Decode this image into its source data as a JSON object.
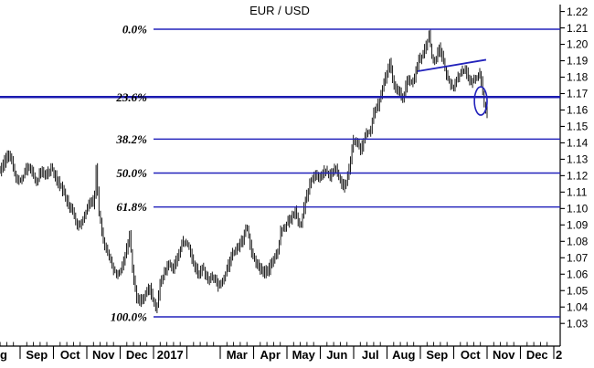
{
  "title": "EUR / USD",
  "colors": {
    "background": "#ffffff",
    "fib_line": "#2222bb",
    "fib_line_emphasis": "#1b1bb0",
    "bars": "#000000",
    "axis": "#000000",
    "annotation": "#2222bb",
    "text": "#000000"
  },
  "y_axis": {
    "side": "right",
    "max": 1.22,
    "min": 1.03,
    "step": 0.01,
    "labels": [
      "1.22",
      "1.21",
      "1.20",
      "1.19",
      "1.18",
      "1.17",
      "1.16",
      "1.15",
      "1.14",
      "1.13",
      "1.12",
      "1.11",
      "1.10",
      "1.09",
      "1.08",
      "1.07",
      "1.06",
      "1.05",
      "1.04",
      "1.03"
    ]
  },
  "x_axis": {
    "unit": "months since 2016-09-01",
    "months": [
      {
        "label": "g",
        "m": -1
      },
      {
        "label": "Sep",
        "m": 0
      },
      {
        "label": "Oct",
        "m": 1
      },
      {
        "label": "Nov",
        "m": 2
      },
      {
        "label": "Dec",
        "m": 3
      },
      {
        "label": "2017",
        "m": 4
      },
      {
        "label": "",
        "m": 5
      },
      {
        "label": "Mar",
        "m": 6
      },
      {
        "label": "Apr",
        "m": 7
      },
      {
        "label": "May",
        "m": 8
      },
      {
        "label": "Jun",
        "m": 9
      },
      {
        "label": "Jul",
        "m": 10
      },
      {
        "label": "Aug",
        "m": 11
      },
      {
        "label": "Sep",
        "m": 12
      },
      {
        "label": "Oct",
        "m": 13
      },
      {
        "label": "Nov",
        "m": 14
      },
      {
        "label": "Dec",
        "m": 15
      },
      {
        "label": "2",
        "m": 16
      }
    ]
  },
  "fibonacci": {
    "high": 1.2092,
    "low": 1.034,
    "levels": [
      {
        "label": "0.0%",
        "price": 1.2092,
        "full_width": false,
        "emphasis": false
      },
      {
        "label": "23.6%",
        "price": 1.1679,
        "full_width": true,
        "emphasis": true
      },
      {
        "label": "38.2%",
        "price": 1.1423,
        "full_width": false,
        "emphasis": false
      },
      {
        "label": "50.0%",
        "price": 1.1216,
        "full_width": false,
        "emphasis": false
      },
      {
        "label": "61.8%",
        "price": 1.1009,
        "full_width": false,
        "emphasis": false
      },
      {
        "label": "100.0%",
        "price": 1.034,
        "full_width": false,
        "emphasis": false
      }
    ]
  },
  "chart_data": {
    "type": "bar",
    "subtype": "ohlc-price-bars",
    "symbol": "EUR/USD",
    "title": "EUR / USD",
    "xlabel": "",
    "ylabel": "",
    "x_range_months": [
      -0.6,
      17.0
    ],
    "data_end_month": 14.0,
    "ylim": [
      1.03,
      1.22
    ],
    "x_unit": "months since 2016-09-01 (0 = Sep 2016, 14 = end Oct 2017)",
    "series": [
      {
        "name": "EUR/USD close path",
        "points": [
          [
            -0.6,
            1.1225
          ],
          [
            -0.45,
            1.1295
          ],
          [
            -0.32,
            1.1345
          ],
          [
            -0.18,
            1.1215
          ],
          [
            -0.05,
            1.1165
          ],
          [
            0.1,
            1.1195
          ],
          [
            0.24,
            1.1265
          ],
          [
            0.36,
            1.1225
          ],
          [
            0.5,
            1.1155
          ],
          [
            0.62,
            1.1235
          ],
          [
            0.78,
            1.1205
          ],
          [
            0.95,
            1.1245
          ],
          [
            1.1,
            1.1175
          ],
          [
            1.25,
            1.1125
          ],
          [
            1.42,
            1.1035
          ],
          [
            1.58,
            1.0975
          ],
          [
            1.72,
            1.0885
          ],
          [
            1.85,
            1.0925
          ],
          [
            2.0,
            1.0985
          ],
          [
            2.12,
            1.1055
          ],
          [
            2.22,
            1.1025
          ],
          [
            2.28,
            1.1255
          ],
          [
            2.36,
            1.0975
          ],
          [
            2.5,
            1.0805
          ],
          [
            2.65,
            1.0715
          ],
          [
            2.8,
            1.0625
          ],
          [
            2.95,
            1.0595
          ],
          [
            3.08,
            1.0655
          ],
          [
            3.2,
            1.0765
          ],
          [
            3.28,
            1.0845
          ],
          [
            3.38,
            1.0605
          ],
          [
            3.5,
            1.0455
          ],
          [
            3.62,
            1.0435
          ],
          [
            3.75,
            1.0475
          ],
          [
            3.88,
            1.0515
          ],
          [
            3.98,
            1.0445
          ],
          [
            4.08,
            1.0375
          ],
          [
            4.2,
            1.0545
          ],
          [
            4.32,
            1.0605
          ],
          [
            4.45,
            1.0665
          ],
          [
            4.58,
            1.0625
          ],
          [
            4.72,
            1.0715
          ],
          [
            4.88,
            1.0795
          ],
          [
            5.05,
            1.0775
          ],
          [
            5.2,
            1.0655
          ],
          [
            5.35,
            1.0605
          ],
          [
            5.48,
            1.0645
          ],
          [
            5.62,
            1.0565
          ],
          [
            5.78,
            1.0585
          ],
          [
            5.95,
            1.0525
          ],
          [
            6.1,
            1.0575
          ],
          [
            6.25,
            1.0655
          ],
          [
            6.4,
            1.0735
          ],
          [
            6.55,
            1.0765
          ],
          [
            6.68,
            1.0815
          ],
          [
            6.8,
            1.0895
          ],
          [
            6.95,
            1.0725
          ],
          [
            7.1,
            1.0665
          ],
          [
            7.28,
            1.0605
          ],
          [
            7.45,
            1.0625
          ],
          [
            7.62,
            1.0705
          ],
          [
            7.74,
            1.0735
          ],
          [
            7.8,
            1.0865
          ],
          [
            7.95,
            1.0895
          ],
          [
            8.1,
            1.0935
          ],
          [
            8.25,
            1.0985
          ],
          [
            8.4,
            1.0885
          ],
          [
            8.55,
            1.1045
          ],
          [
            8.7,
            1.116
          ],
          [
            8.85,
            1.121
          ],
          [
            9.0,
            1.119
          ],
          [
            9.15,
            1.1235
          ],
          [
            9.3,
            1.1195
          ],
          [
            9.45,
            1.1255
          ],
          [
            9.6,
            1.1165
          ],
          [
            9.75,
            1.1125
          ],
          [
            9.87,
            1.125
          ],
          [
            9.97,
            1.1415
          ],
          [
            10.1,
            1.1405
          ],
          [
            10.22,
            1.1355
          ],
          [
            10.35,
            1.1455
          ],
          [
            10.5,
            1.1475
          ],
          [
            10.63,
            1.1605
          ],
          [
            10.75,
            1.1635
          ],
          [
            10.88,
            1.1745
          ],
          [
            11.0,
            1.1825
          ],
          [
            11.08,
            1.1885
          ],
          [
            11.2,
            1.175
          ],
          [
            11.35,
            1.1705
          ],
          [
            11.5,
            1.1675
          ],
          [
            11.62,
            1.181
          ],
          [
            11.72,
            1.176
          ],
          [
            11.85,
            1.1815
          ],
          [
            11.95,
            1.1905
          ],
          [
            12.05,
            1.1925
          ],
          [
            12.15,
            1.1975
          ],
          [
            12.26,
            1.2055
          ],
          [
            12.35,
            1.1915
          ],
          [
            12.45,
            1.1885
          ],
          [
            12.55,
            1.1985
          ],
          [
            12.65,
            1.1925
          ],
          [
            12.78,
            1.1815
          ],
          [
            12.9,
            1.1755
          ],
          [
            13.0,
            1.1735
          ],
          [
            13.1,
            1.1795
          ],
          [
            13.22,
            1.1825
          ],
          [
            13.35,
            1.1845
          ],
          [
            13.45,
            1.1785
          ],
          [
            13.55,
            1.177
          ],
          [
            13.65,
            1.179
          ],
          [
            13.78,
            1.182
          ],
          [
            13.84,
            1.175
          ],
          [
            13.9,
            1.165
          ],
          [
            13.95,
            1.1585
          ],
          [
            14.0,
            1.1625
          ]
        ]
      }
    ],
    "annotations": {
      "trendline": {
        "t1": 11.92,
        "price1": 1.1836,
        "t2": 13.97,
        "price2": 1.1906
      },
      "ellipse": {
        "t": 13.81,
        "price": 1.1655,
        "rx_months": 0.19,
        "ry_price": 0.0086
      }
    },
    "legend": "none",
    "grid": "off"
  }
}
